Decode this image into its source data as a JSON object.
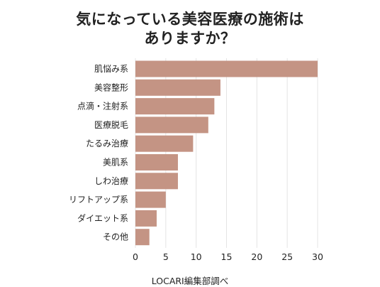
{
  "chart_data": {
    "type": "bar",
    "orientation": "horizontal",
    "title_lines": [
      "気になっている美容医療の施術は",
      "ありますか？"
    ],
    "categories": [
      "肌悩み系",
      "美容整形",
      "点滴・注射系",
      "医療脱毛",
      "たるみ治療",
      "美肌系",
      "しわ治療",
      "リフトアップ系",
      "ダイエット系",
      "その他"
    ],
    "values": [
      30,
      14,
      13,
      12,
      9.5,
      7,
      7,
      5,
      3.5,
      2.3
    ],
    "xlim": [
      0,
      30
    ],
    "xticks": [
      "0",
      "5",
      "10",
      "15",
      "20",
      "25",
      "30"
    ],
    "grid": true,
    "bar_color": "#c49484",
    "grid_color": "#e4e4e4"
  },
  "footer": "LOCARI編集部調べ"
}
